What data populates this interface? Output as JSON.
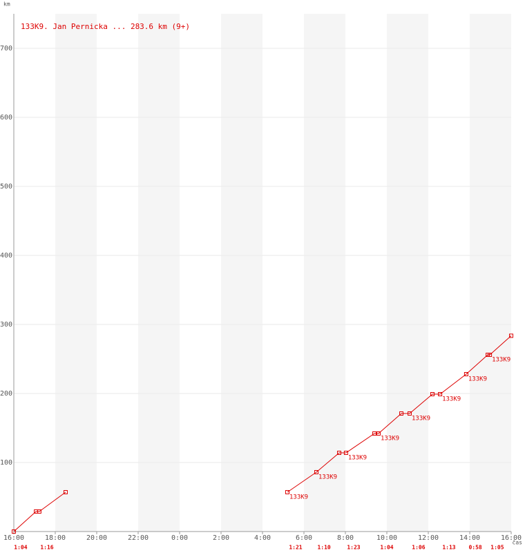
{
  "chart_data": {
    "type": "line",
    "title": "133K9. Jan Pernicka ... 283.6 km (9+)",
    "y_label": "km",
    "x_label": "čas",
    "xlim": [
      0,
      24
    ],
    "ylim": [
      0,
      750
    ],
    "xticks": [
      {
        "value": 0,
        "label": "16:00"
      },
      {
        "value": 2,
        "label": "18:00"
      },
      {
        "value": 4,
        "label": "20:00"
      },
      {
        "value": 6,
        "label": "22:00"
      },
      {
        "value": 8,
        "label": "0:00"
      },
      {
        "value": 10,
        "label": "2:00"
      },
      {
        "value": 12,
        "label": "4:00"
      },
      {
        "value": 14,
        "label": "6:00"
      },
      {
        "value": 16,
        "label": "8:00"
      },
      {
        "value": 18,
        "label": "10:00"
      },
      {
        "value": 20,
        "label": "12:00"
      },
      {
        "value": 22,
        "label": "14:00"
      },
      {
        "value": 24,
        "label": "16:00"
      }
    ],
    "yticks": [
      100,
      200,
      300,
      400,
      500,
      600,
      700
    ],
    "grid": true,
    "series": [
      {
        "name": "133K9",
        "color": "#dd0000",
        "x": [
          0,
          1.07,
          1.23,
          2.5,
          null,
          13.2,
          14.6,
          15.7,
          16.03,
          17.4,
          17.6,
          18.7,
          19.1,
          20.2,
          20.57,
          21.83,
          22.87,
          22.97,
          24
        ],
        "values": [
          0,
          29,
          29,
          57,
          null,
          57,
          86,
          114,
          114,
          142,
          142,
          171,
          171,
          199,
          199,
          228,
          256,
          256,
          283.6
        ]
      }
    ],
    "annotations": [
      {
        "x": 13.2,
        "y": 57,
        "text": "133K9"
      },
      {
        "x": 14.6,
        "y": 86,
        "text": "133K9"
      },
      {
        "x": 16.03,
        "y": 114,
        "text": "133K9"
      },
      {
        "x": 17.6,
        "y": 142,
        "text": "133K9"
      },
      {
        "x": 19.1,
        "y": 171,
        "text": "133K9"
      },
      {
        "x": 20.57,
        "y": 199,
        "text": "133K9"
      },
      {
        "x": 21.83,
        "y": 228,
        "text": "133K9"
      },
      {
        "x": 22.97,
        "y": 256,
        "text": "133K9"
      }
    ],
    "bottom_labels": [
      {
        "x": 0.33,
        "text": "1:04"
      },
      {
        "x": 1.6,
        "text": "1:16"
      },
      {
        "x": 13.6,
        "text": "1:21"
      },
      {
        "x": 14.97,
        "text": "1:10"
      },
      {
        "x": 16.4,
        "text": "1:23"
      },
      {
        "x": 18,
        "text": "1:04"
      },
      {
        "x": 19.53,
        "text": "1:06"
      },
      {
        "x": 21,
        "text": "1:13"
      },
      {
        "x": 22.27,
        "text": "0:58"
      },
      {
        "x": 23.33,
        "text": "1:05"
      }
    ]
  }
}
